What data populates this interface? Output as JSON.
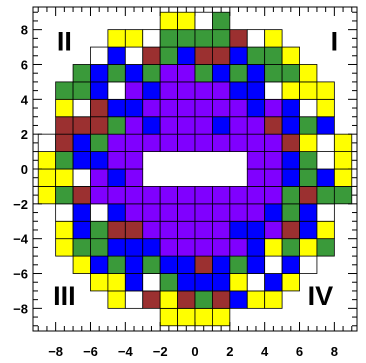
{
  "chart_data": {
    "type": "heatmap",
    "title": "",
    "xlabel": "",
    "ylabel": "",
    "xlim": [
      -9.3,
      9.3
    ],
    "ylim": [
      -9.3,
      9.3
    ],
    "x_ticks": [
      "−8",
      "−6",
      "−4",
      "−2",
      "0",
      "2",
      "4",
      "6",
      "8"
    ],
    "y_ticks": [
      "8",
      "6",
      "4",
      "2",
      "0",
      "−2",
      "−4",
      "−6",
      "−8"
    ],
    "x_tick_values": [
      -8,
      -6,
      -4,
      -2,
      0,
      2,
      4,
      6,
      8
    ],
    "y_tick_values": [
      8,
      6,
      4,
      2,
      0,
      -2,
      -4,
      -6,
      -8
    ],
    "quadrant_labels": [
      {
        "text": "I",
        "quadrant": "top-right"
      },
      {
        "text": "II",
        "quadrant": "top-left"
      },
      {
        "text": "III",
        "quadrant": "bottom-left"
      },
      {
        "text": "IV",
        "quadrant": "bottom-right"
      }
    ],
    "cell_size": 1,
    "outer_radius": 8.8,
    "inner_hole": {
      "x": [
        -3,
        3
      ],
      "y": [
        -1.5,
        1.5
      ]
    },
    "categories": [
      "yellow",
      "green",
      "blue",
      "brown",
      "purple",
      "white"
    ],
    "colors": {
      "yellow": "#ffff00",
      "green": "#3a9a3a",
      "blue": "#0000ff",
      "brown": "#9b3030",
      "purple": "#8000ff",
      "white": "#ffffff"
    },
    "grid": false
  }
}
